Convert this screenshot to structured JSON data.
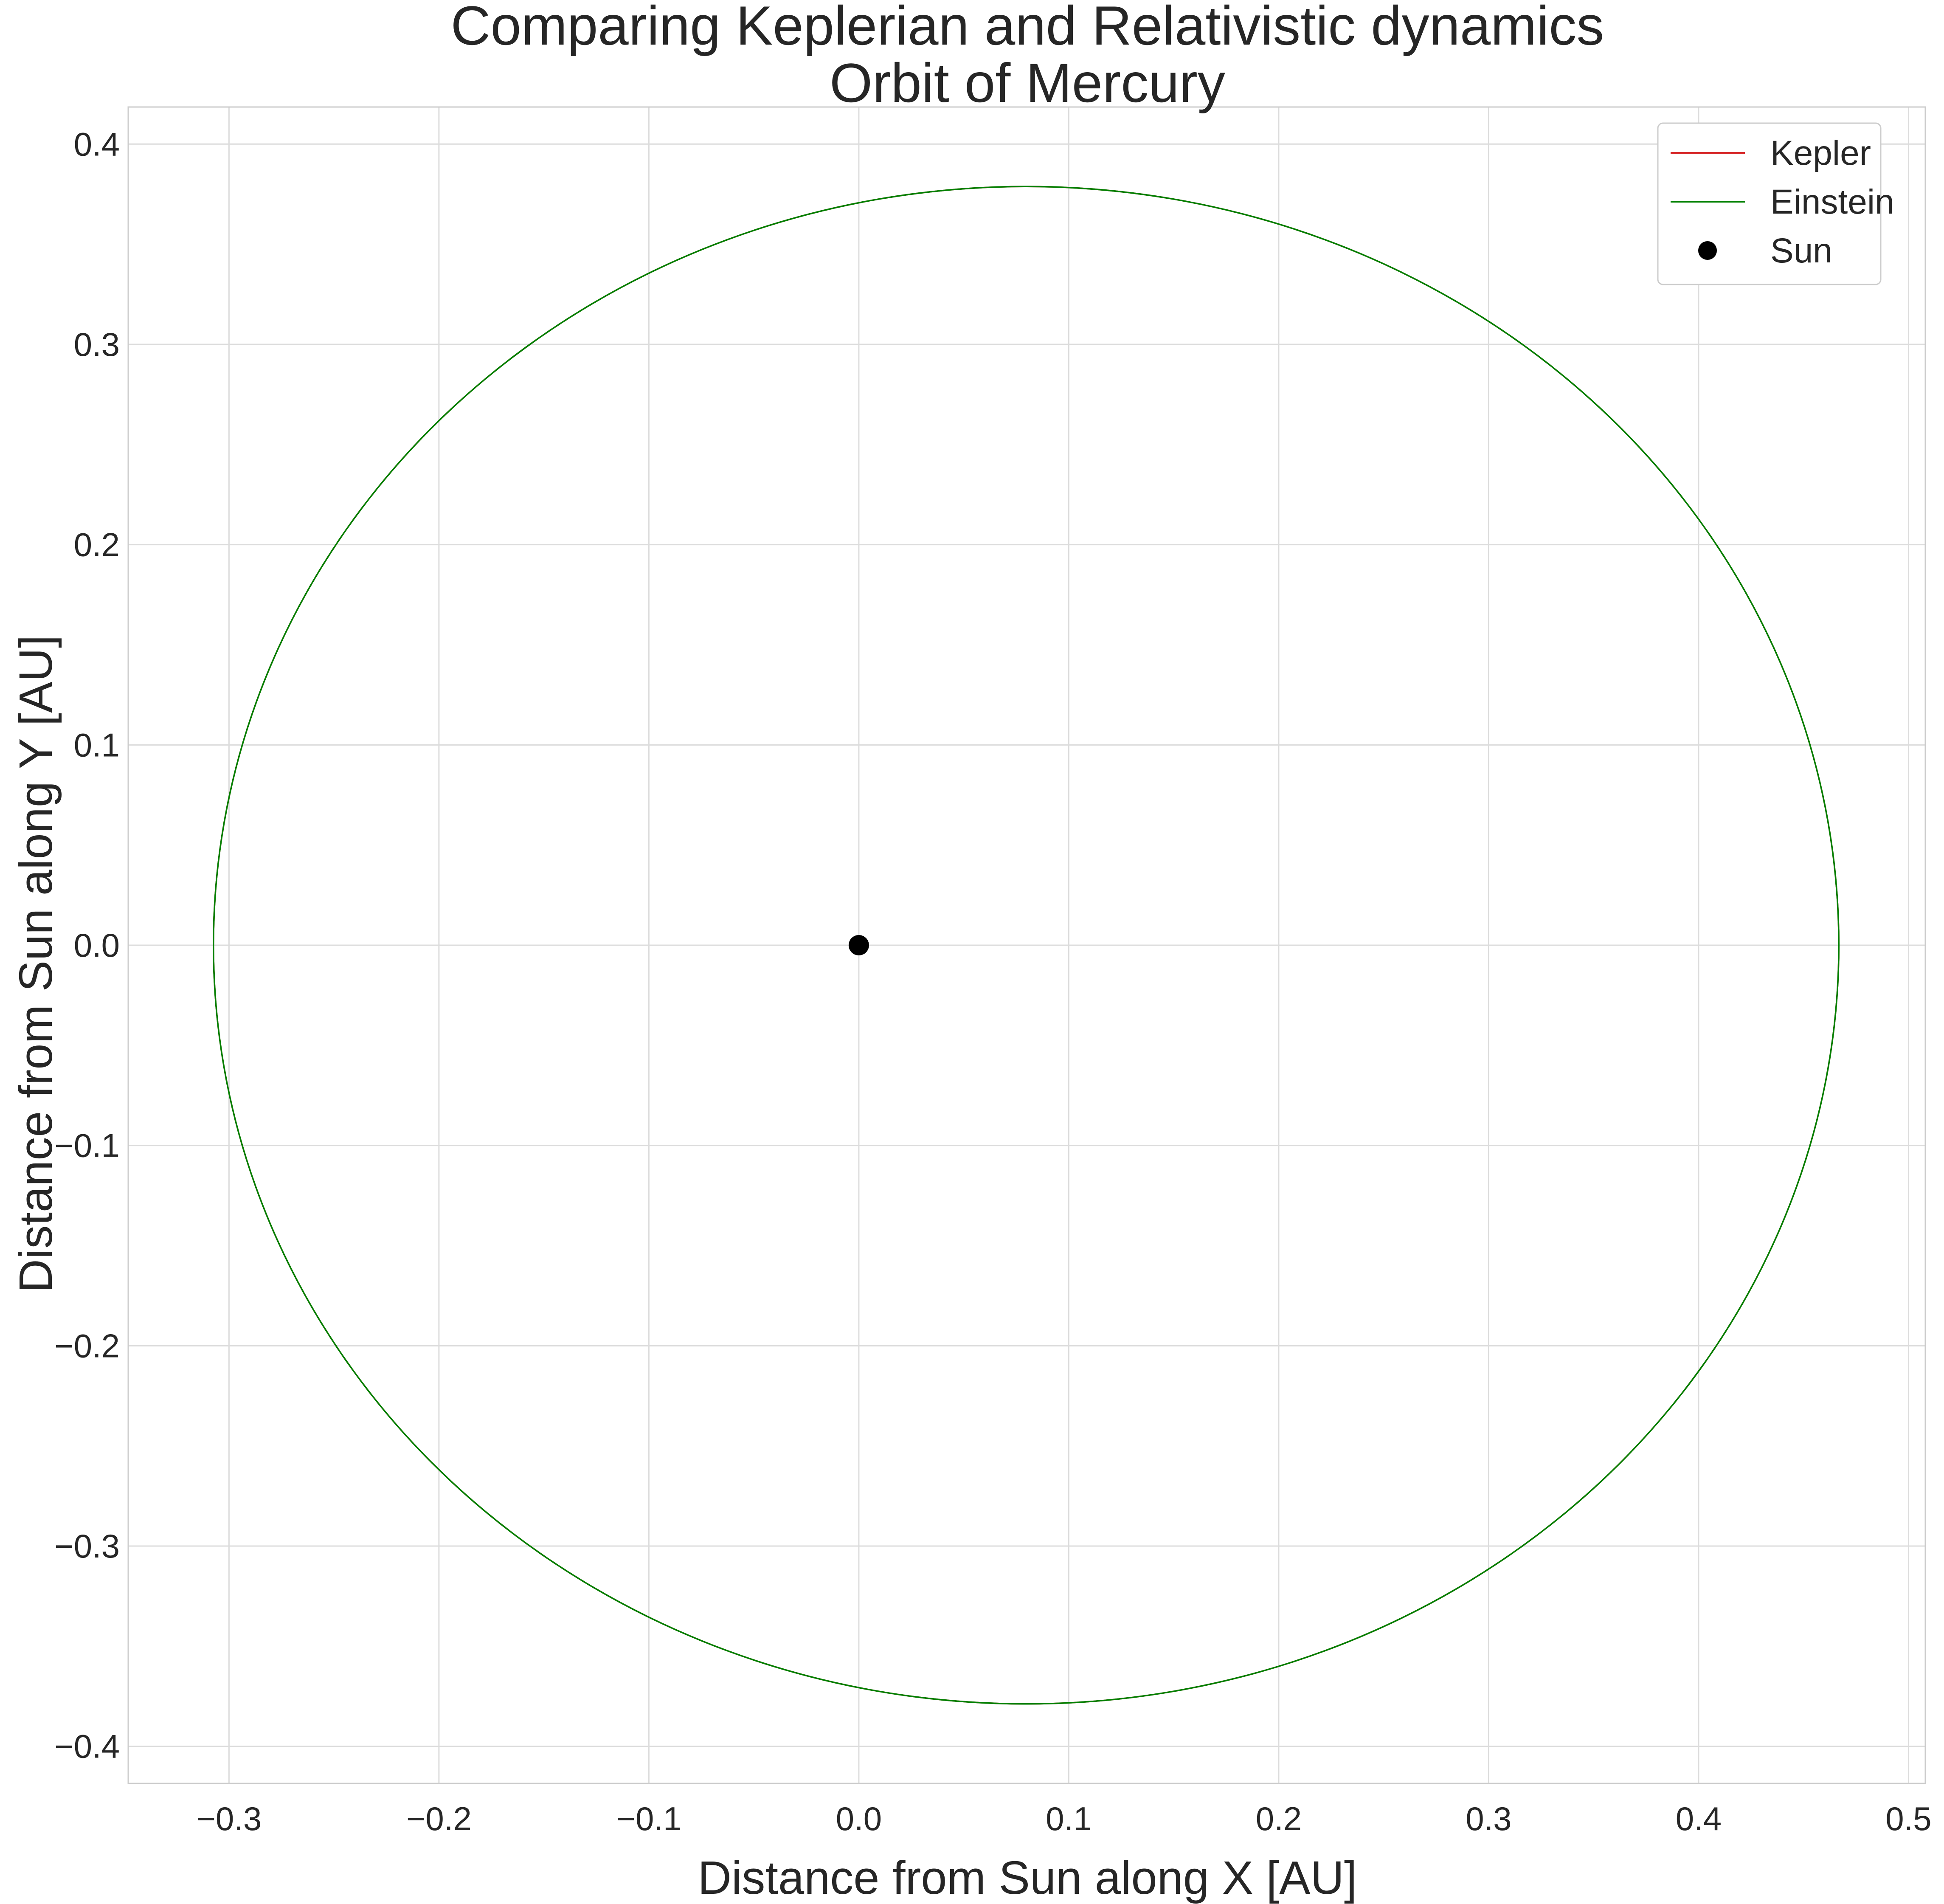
{
  "chart_data": {
    "type": "line",
    "title_line1": "Comparing Keplerian and Relativistic dynamics",
    "title_line2": "Orbit of Mercury",
    "xlabel": "Distance from Sun along X [AU]",
    "ylabel": "Distance from Sun along Y [AU]",
    "xlim": [
      -0.348,
      0.508
    ],
    "ylim": [
      -0.4185,
      0.4185
    ],
    "xticks": [
      -0.3,
      -0.2,
      -0.1,
      0.0,
      0.1,
      0.2,
      0.3,
      0.4,
      0.5
    ],
    "yticks": [
      0.4,
      0.3,
      0.2,
      0.1,
      0.0,
      -0.1,
      -0.2,
      -0.3,
      -0.4
    ],
    "xtick_labels": [
      "−0.3",
      "−0.2",
      "−0.1",
      "0.0",
      "0.1",
      "0.2",
      "0.3",
      "0.4",
      "0.5"
    ],
    "ytick_labels": [
      "0.4",
      "0.3",
      "0.2",
      "0.1",
      "0.0",
      "−0.1",
      "−0.2",
      "−0.3",
      "−0.4"
    ],
    "grid": true,
    "legend_position": "top-right",
    "series": [
      {
        "name": "Kepler",
        "color": "#d62728",
        "kind": "ellipse",
        "center": [
          0.0797,
          0.0
        ],
        "semi_major_axis": 0.3871,
        "semi_minor_axis": 0.3788
      },
      {
        "name": "Einstein",
        "color": "#008000",
        "kind": "ellipse",
        "center": [
          0.0797,
          0.0
        ],
        "semi_major_axis": 0.3871,
        "semi_minor_axis": 0.3788
      },
      {
        "name": "Sun",
        "color": "#000000",
        "kind": "point",
        "x": 0.0,
        "y": 0.0
      }
    ]
  }
}
